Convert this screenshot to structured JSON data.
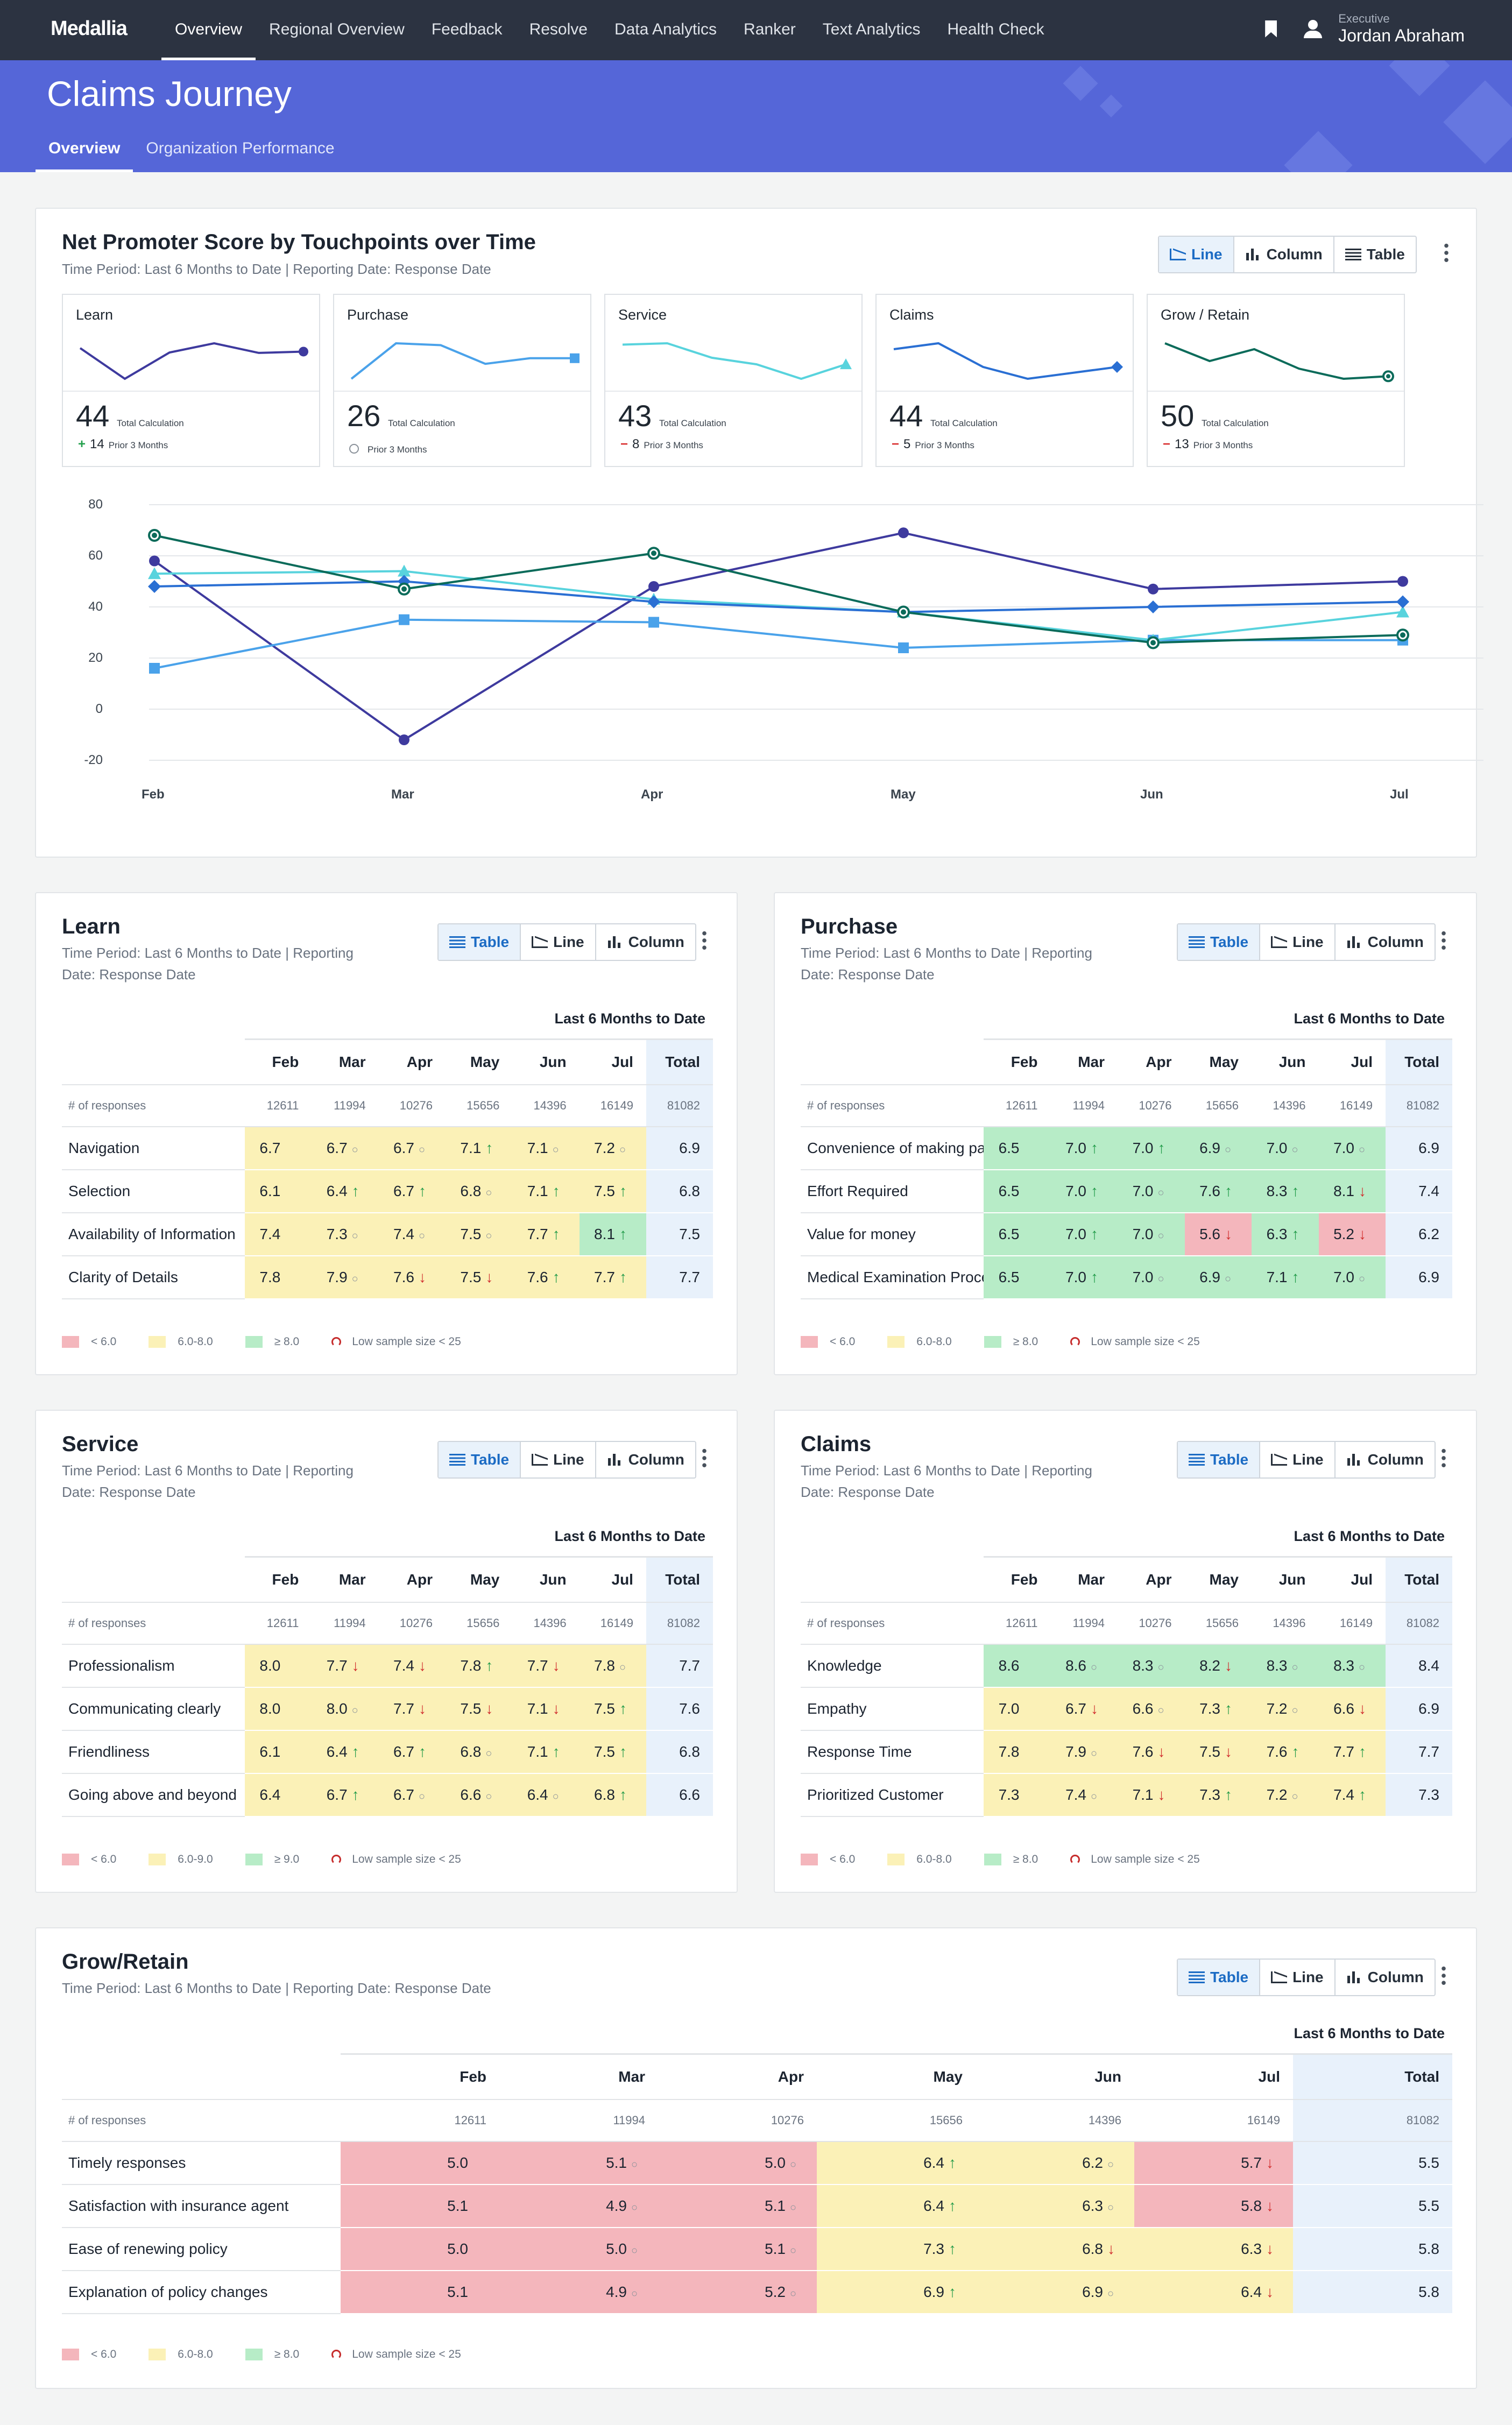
{
  "app": {
    "logo": "Medallia"
  },
  "nav": [
    "Overview",
    "Regional Overview",
    "Feedback",
    "Resolve",
    "Data Analytics",
    "Ranker",
    "Text Analytics",
    "Health Check"
  ],
  "user": {
    "role": "Executive",
    "name": "Jordan Abraham"
  },
  "page": {
    "title": "Claims Journey",
    "tabs": [
      "Overview",
      "Organization Performance"
    ]
  },
  "colors": {
    "nav_bg": "#2c3341",
    "header_bg": "#5566d8",
    "low": "#f4b6bc",
    "mid": "#fbf1b7",
    "high": "#b7ecc7",
    "total": "#e8f1fb"
  },
  "view_labels": {
    "line": "Line",
    "column": "Column",
    "table": "Table"
  },
  "period_label": "Last 6 Months to Date",
  "total_label": "Total",
  "responses_label": "# of responses",
  "nps": {
    "title": "Net Promoter Score by Touchpoints over Time",
    "subtitle": "Time Period: Last 6 Months to Date | Reporting Date: Response Date",
    "calc_label": "Total Calculation",
    "prior_label": "Prior 3 Months",
    "touchpoints": [
      {
        "name": "Learn",
        "value": "44",
        "delta": "14",
        "dir": "up",
        "color": "#3e3a9e",
        "marker": "circle"
      },
      {
        "name": "Purchase",
        "value": "26",
        "delta": "",
        "dir": "none",
        "color": "#4aa2ea",
        "marker": "square"
      },
      {
        "name": "Service",
        "value": "43",
        "delta": "8",
        "dir": "down",
        "color": "#58d3dd",
        "marker": "triangle"
      },
      {
        "name": "Claims",
        "value": "44",
        "delta": "5",
        "dir": "down",
        "color": "#2a6fd3",
        "marker": "diamond"
      },
      {
        "name": "Grow / Retain",
        "value": "50",
        "delta": "13",
        "dir": "down",
        "color": "#0b6b5a",
        "marker": "ring"
      }
    ],
    "chart_data": {
      "type": "line",
      "x": [
        "Feb",
        "Mar",
        "Apr",
        "May",
        "Jun",
        "Jul"
      ],
      "ylim": [
        -20,
        80
      ],
      "yticks": [
        "80",
        "60",
        "40",
        "20",
        "0",
        "-20"
      ],
      "series": [
        {
          "name": "Learn",
          "values": [
            58,
            -12,
            48,
            69,
            47,
            50
          ]
        },
        {
          "name": "Purchase",
          "values": [
            16,
            35,
            34,
            24,
            27,
            27
          ]
        },
        {
          "name": "Service",
          "values": [
            53,
            54,
            43,
            38,
            27,
            38
          ]
        },
        {
          "name": "Claims",
          "values": [
            48,
            50,
            42,
            38,
            40,
            42
          ]
        },
        {
          "name": "Grow / Retain",
          "values": [
            68,
            47,
            61,
            38,
            26,
            29
          ]
        }
      ]
    }
  },
  "panels": [
    {
      "key": "learn",
      "title": "Learn",
      "subtitle": [
        "Time Period: Last 6 Months to Date | Reporting",
        "Date: Response Date"
      ],
      "months": [
        "Feb",
        "Mar",
        "Apr",
        "May",
        "Jun",
        "Jul"
      ],
      "responses": [
        "12611",
        "11994",
        "10276",
        "15656",
        "14396",
        "16149",
        "81082"
      ],
      "rows": [
        {
          "label": "Navigation",
          "cells": [
            [
              "6.7",
              "y",
              ""
            ],
            [
              "6.7",
              "y",
              "nc"
            ],
            [
              "6.7",
              "y",
              "nc"
            ],
            [
              "7.1",
              "y",
              "up"
            ],
            [
              "7.1",
              "y",
              "nc"
            ],
            [
              "7.2",
              "y",
              "nc"
            ]
          ],
          "total": "6.9"
        },
        {
          "label": "Selection",
          "cells": [
            [
              "6.1",
              "y",
              ""
            ],
            [
              "6.4",
              "y",
              "up"
            ],
            [
              "6.7",
              "y",
              "up"
            ],
            [
              "6.8",
              "y",
              "nc"
            ],
            [
              "7.1",
              "y",
              "up"
            ],
            [
              "7.5",
              "y",
              "up"
            ]
          ],
          "total": "6.8"
        },
        {
          "label": "Availability of Information",
          "cells": [
            [
              "7.4",
              "y",
              ""
            ],
            [
              "7.3",
              "y",
              "nc"
            ],
            [
              "7.4",
              "y",
              "nc"
            ],
            [
              "7.5",
              "y",
              "nc"
            ],
            [
              "7.7",
              "y",
              "up"
            ],
            [
              "8.1",
              "g",
              "up"
            ]
          ],
          "total": "7.5"
        },
        {
          "label": "Clarity of Details",
          "cells": [
            [
              "7.8",
              "y",
              ""
            ],
            [
              "7.9",
              "y",
              "nc"
            ],
            [
              "7.6",
              "y",
              "dn"
            ],
            [
              "7.5",
              "y",
              "dn"
            ],
            [
              "7.6",
              "y",
              "up"
            ],
            [
              "7.7",
              "y",
              "up"
            ]
          ],
          "total": "7.7"
        }
      ],
      "legend": [
        "< 6.0",
        "6.0-8.0",
        "≥ 8.0",
        "Low sample size < 25"
      ]
    },
    {
      "key": "purchase",
      "title": "Purchase",
      "subtitle": [
        "Time Period: Last 6 Months to Date | Reporting",
        "Date: Response Date"
      ],
      "months": [
        "Feb",
        "Mar",
        "Apr",
        "May",
        "Jun",
        "Jul"
      ],
      "responses": [
        "12611",
        "11994",
        "10276",
        "15656",
        "14396",
        "16149",
        "81082"
      ],
      "rows": [
        {
          "label": "Convenience of making payment",
          "cells": [
            [
              "6.5",
              "g",
              ""
            ],
            [
              "7.0",
              "g",
              "up"
            ],
            [
              "7.0",
              "g",
              "up"
            ],
            [
              "6.9",
              "g",
              "nc"
            ],
            [
              "7.0",
              "g",
              "nc"
            ],
            [
              "7.0",
              "g",
              "nc"
            ]
          ],
          "total": "6.9"
        },
        {
          "label": "Effort Required",
          "cells": [
            [
              "6.5",
              "g",
              ""
            ],
            [
              "7.0",
              "g",
              "up"
            ],
            [
              "7.0",
              "g",
              "nc"
            ],
            [
              "7.6",
              "g",
              "up"
            ],
            [
              "8.3",
              "g",
              "up"
            ],
            [
              "8.1",
              "g",
              "dn"
            ]
          ],
          "total": "7.4"
        },
        {
          "label": "Value for money",
          "cells": [
            [
              "6.5",
              "g",
              ""
            ],
            [
              "7.0",
              "g",
              "up"
            ],
            [
              "7.0",
              "g",
              "nc"
            ],
            [
              "5.6",
              "r",
              "dn"
            ],
            [
              "6.3",
              "g",
              "up"
            ],
            [
              "5.2",
              "r",
              "dn"
            ]
          ],
          "total": "6.2"
        },
        {
          "label": "Medical Examination Process",
          "cells": [
            [
              "6.5",
              "g",
              ""
            ],
            [
              "7.0",
              "g",
              "up"
            ],
            [
              "7.0",
              "g",
              "nc"
            ],
            [
              "6.9",
              "g",
              "nc"
            ],
            [
              "7.1",
              "g",
              "up"
            ],
            [
              "7.0",
              "g",
              "nc"
            ]
          ],
          "total": "6.9"
        }
      ],
      "legend": [
        "< 6.0",
        "6.0-8.0",
        "≥ 8.0",
        "Low sample size < 25"
      ]
    },
    {
      "key": "service",
      "title": "Service",
      "subtitle": [
        "Time Period: Last 6 Months to Date | Reporting",
        "Date: Response Date"
      ],
      "months": [
        "Feb",
        "Mar",
        "Apr",
        "May",
        "Jun",
        "Jul"
      ],
      "responses": [
        "12611",
        "11994",
        "10276",
        "15656",
        "14396",
        "16149",
        "81082"
      ],
      "rows": [
        {
          "label": "Professionalism",
          "cells": [
            [
              "8.0",
              "y",
              ""
            ],
            [
              "7.7",
              "y",
              "dn"
            ],
            [
              "7.4",
              "y",
              "dn"
            ],
            [
              "7.8",
              "y",
              "up"
            ],
            [
              "7.7",
              "y",
              "dn"
            ],
            [
              "7.8",
              "y",
              "nc"
            ]
          ],
          "total": "7.7"
        },
        {
          "label": "Communicating clearly",
          "cells": [
            [
              "8.0",
              "y",
              ""
            ],
            [
              "8.0",
              "y",
              "nc"
            ],
            [
              "7.7",
              "y",
              "dn"
            ],
            [
              "7.5",
              "y",
              "dn"
            ],
            [
              "7.1",
              "y",
              "dn"
            ],
            [
              "7.5",
              "y",
              "up"
            ]
          ],
          "total": "7.6"
        },
        {
          "label": "Friendliness",
          "cells": [
            [
              "6.1",
              "y",
              ""
            ],
            [
              "6.4",
              "y",
              "up"
            ],
            [
              "6.7",
              "y",
              "up"
            ],
            [
              "6.8",
              "y",
              "nc"
            ],
            [
              "7.1",
              "y",
              "up"
            ],
            [
              "7.5",
              "y",
              "up"
            ]
          ],
          "total": "6.8"
        },
        {
          "label": "Going above and beyond",
          "cells": [
            [
              "6.4",
              "y",
              ""
            ],
            [
              "6.7",
              "y",
              "up"
            ],
            [
              "6.7",
              "y",
              "nc"
            ],
            [
              "6.6",
              "y",
              "nc"
            ],
            [
              "6.4",
              "y",
              "nc"
            ],
            [
              "6.8",
              "y",
              "up"
            ]
          ],
          "total": "6.6"
        }
      ],
      "legend": [
        "< 6.0",
        "6.0-9.0",
        "≥ 9.0",
        "Low sample size < 25"
      ]
    },
    {
      "key": "claims",
      "title": "Claims",
      "subtitle": [
        "Time Period: Last 6 Months to Date | Reporting",
        "Date: Response Date"
      ],
      "months": [
        "Feb",
        "Mar",
        "Apr",
        "May",
        "Jun",
        "Jul"
      ],
      "responses": [
        "12611",
        "11994",
        "10276",
        "15656",
        "14396",
        "16149",
        "81082"
      ],
      "rows": [
        {
          "label": "Knowledge",
          "cells": [
            [
              "8.6",
              "g",
              ""
            ],
            [
              "8.6",
              "g",
              "nc"
            ],
            [
              "8.3",
              "g",
              "nc"
            ],
            [
              "8.2",
              "g",
              "dn"
            ],
            [
              "8.3",
              "g",
              "nc"
            ],
            [
              "8.3",
              "g",
              "nc"
            ]
          ],
          "total": "8.4"
        },
        {
          "label": "Empathy",
          "cells": [
            [
              "7.0",
              "y",
              ""
            ],
            [
              "6.7",
              "y",
              "dn"
            ],
            [
              "6.6",
              "y",
              "nc"
            ],
            [
              "7.3",
              "y",
              "up"
            ],
            [
              "7.2",
              "y",
              "nc"
            ],
            [
              "6.6",
              "y",
              "dn"
            ]
          ],
          "total": "6.9"
        },
        {
          "label": "Response Time",
          "cells": [
            [
              "7.8",
              "y",
              ""
            ],
            [
              "7.9",
              "y",
              "nc"
            ],
            [
              "7.6",
              "y",
              "dn"
            ],
            [
              "7.5",
              "y",
              "dn"
            ],
            [
              "7.6",
              "y",
              "up"
            ],
            [
              "7.7",
              "y",
              "up"
            ]
          ],
          "total": "7.7"
        },
        {
          "label": "Prioritized Customer",
          "cells": [
            [
              "7.3",
              "y",
              ""
            ],
            [
              "7.4",
              "y",
              "nc"
            ],
            [
              "7.1",
              "y",
              "dn"
            ],
            [
              "7.3",
              "y",
              "up"
            ],
            [
              "7.2",
              "y",
              "nc"
            ],
            [
              "7.4",
              "y",
              "up"
            ]
          ],
          "total": "7.3"
        }
      ],
      "legend": [
        "< 6.0",
        "6.0-8.0",
        "≥ 8.0",
        "Low sample size < 25"
      ]
    },
    {
      "key": "grow",
      "title": "Grow/Retain",
      "subtitle": [
        "Time Period: Last 6 Months to Date | Reporting Date: Response Date",
        ""
      ],
      "months": [
        "Feb",
        "Mar",
        "Apr",
        "May",
        "Jun",
        "Jul"
      ],
      "responses": [
        "12611",
        "11994",
        "10276",
        "15656",
        "14396",
        "16149",
        "81082"
      ],
      "rows": [
        {
          "label": "Timely responses",
          "cells": [
            [
              "5.0",
              "r",
              ""
            ],
            [
              "5.1",
              "r",
              "nc"
            ],
            [
              "5.0",
              "r",
              "nc"
            ],
            [
              "6.4",
              "y",
              "up"
            ],
            [
              "6.2",
              "y",
              "nc"
            ],
            [
              "5.7",
              "r",
              "dn"
            ]
          ],
          "total": "5.5"
        },
        {
          "label": "Satisfaction with insurance agent",
          "cells": [
            [
              "5.1",
              "r",
              ""
            ],
            [
              "4.9",
              "r",
              "nc"
            ],
            [
              "5.1",
              "r",
              "nc"
            ],
            [
              "6.4",
              "y",
              "up"
            ],
            [
              "6.3",
              "y",
              "nc"
            ],
            [
              "5.8",
              "r",
              "dn"
            ]
          ],
          "total": "5.5"
        },
        {
          "label": "Ease of renewing policy",
          "cells": [
            [
              "5.0",
              "r",
              ""
            ],
            [
              "5.0",
              "r",
              "nc"
            ],
            [
              "5.1",
              "r",
              "nc"
            ],
            [
              "7.3",
              "y",
              "up"
            ],
            [
              "6.8",
              "y",
              "dn"
            ],
            [
              "6.3",
              "y",
              "dn"
            ]
          ],
          "total": "5.8"
        },
        {
          "label": "Explanation of policy changes",
          "cells": [
            [
              "5.1",
              "r",
              ""
            ],
            [
              "4.9",
              "r",
              "nc"
            ],
            [
              "5.2",
              "r",
              "nc"
            ],
            [
              "6.9",
              "y",
              "up"
            ],
            [
              "6.9",
              "y",
              "nc"
            ],
            [
              "6.4",
              "y",
              "dn"
            ]
          ],
          "total": "5.8"
        }
      ],
      "legend": [
        "< 6.0",
        "6.0-8.0",
        "≥ 8.0",
        "Low sample size < 25"
      ]
    }
  ]
}
